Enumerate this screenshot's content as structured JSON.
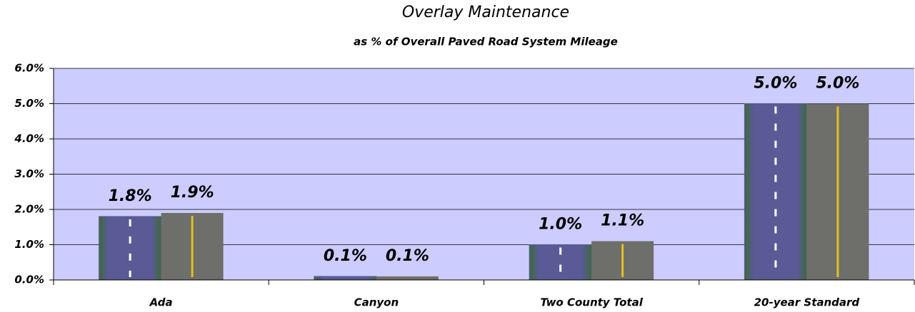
{
  "chart_data": {
    "type": "bar",
    "title": "Overlay Maintenance",
    "subtitle": "as % of Overall Paved Road System Mileage",
    "categories": [
      "Ada",
      "Canyon",
      "Two County Total",
      "20-year Standard"
    ],
    "series": [
      {
        "color": "#5a5a96",
        "values": [
          1.8,
          0.1,
          1.0,
          5.0
        ],
        "value_labels": [
          "1.8%",
          "0.1%",
          "1.0%",
          "5.0%"
        ]
      },
      {
        "color": "#6e6e6a",
        "values": [
          1.9,
          0.1,
          1.1,
          5.0
        ],
        "value_labels": [
          "1.9%",
          "0.1%",
          "1.1%",
          "5.0%"
        ]
      }
    ],
    "ylim": [
      0,
      6
    ],
    "yticks": [
      {
        "value": 0,
        "label": "0.0%"
      },
      {
        "value": 1,
        "label": "1.0%"
      },
      {
        "value": 2,
        "label": "2.0%"
      },
      {
        "value": 3,
        "label": "3.0%"
      },
      {
        "value": 4,
        "label": "4.0%"
      },
      {
        "value": 5,
        "label": "5.0%"
      },
      {
        "value": 6,
        "label": "6.0%"
      }
    ],
    "grid": true,
    "plot_background": "#ccccff"
  }
}
